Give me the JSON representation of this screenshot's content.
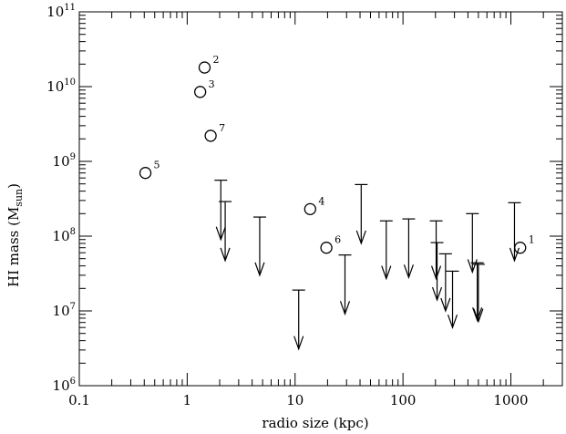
{
  "chart_data": {
    "type": "scatter",
    "title": "",
    "xlabel": "radio size (kpc)",
    "ylabel_main": "HI mass (M",
    "ylabel_sub": "sun",
    "ylabel_end": ")",
    "x_scale": "log",
    "y_scale": "log",
    "xlim": [
      0.1,
      3000
    ],
    "ylim": [
      1000000,
      100000000000
    ],
    "x_ticks": [
      {
        "value": 0.1,
        "label": "0.1"
      },
      {
        "value": 1,
        "label": "1"
      },
      {
        "value": 10,
        "label": "10"
      },
      {
        "value": 100,
        "label": "100"
      },
      {
        "value": 1000,
        "label": "1000"
      }
    ],
    "y_ticks": [
      {
        "value": 1000000,
        "base": "10",
        "exp": "6"
      },
      {
        "value": 10000000,
        "base": "10",
        "exp": "7"
      },
      {
        "value": 100000000,
        "base": "10",
        "exp": "8"
      },
      {
        "value": 1000000000,
        "base": "10",
        "exp": "9"
      },
      {
        "value": 10000000000,
        "base": "10",
        "exp": "10"
      },
      {
        "value": 100000000000,
        "base": "10",
        "exp": "11"
      }
    ],
    "grid": false,
    "legend": "none",
    "series": [
      {
        "marker": "circle",
        "points": [
          {
            "x": 1220,
            "y": 70000000,
            "label": "1"
          },
          {
            "x": 1.45,
            "y": 18000000000,
            "label": "2"
          },
          {
            "x": 1.32,
            "y": 8500000000,
            "label": "3"
          },
          {
            "x": 13.8,
            "y": 230000000,
            "label": "4"
          },
          {
            "x": 0.41,
            "y": 700000000,
            "label": "5"
          },
          {
            "x": 19.5,
            "y": 70000000,
            "label": "6"
          },
          {
            "x": 1.65,
            "y": 2200000000,
            "label": "7"
          }
        ]
      },
      {
        "marker": "upper-limit-arrow",
        "points": [
          {
            "x": 2.05,
            "y_top": 560000000,
            "y_tip": 90000000
          },
          {
            "x": 2.25,
            "y_top": 290000000,
            "y_tip": 47000000
          },
          {
            "x": 4.7,
            "y_top": 180000000,
            "y_tip": 30000000
          },
          {
            "x": 10.8,
            "y_top": 19000000,
            "y_tip": 3100000
          },
          {
            "x": 29,
            "y_top": 56000000,
            "y_tip": 9100000
          },
          {
            "x": 41,
            "y_top": 490000000,
            "y_tip": 80000000
          },
          {
            "x": 70,
            "y_top": 160000000,
            "y_tip": 27000000
          },
          {
            "x": 113,
            "y_top": 170000000,
            "y_tip": 28000000
          },
          {
            "x": 203,
            "y_top": 160000000,
            "y_tip": 27000000
          },
          {
            "x": 207,
            "y_top": 82000000,
            "y_tip": 14000000
          },
          {
            "x": 248,
            "y_top": 58000000,
            "y_tip": 10000000
          },
          {
            "x": 288,
            "y_top": 34000000,
            "y_tip": 6000000
          },
          {
            "x": 440,
            "y_top": 200000000,
            "y_tip": 33000000
          },
          {
            "x": 488,
            "y_top": 44000000,
            "y_tip": 7500000
          },
          {
            "x": 500,
            "y_top": 42000000,
            "y_tip": 7200000
          },
          {
            "x": 1080,
            "y_top": 280000000,
            "y_tip": 47000000
          }
        ]
      }
    ]
  }
}
